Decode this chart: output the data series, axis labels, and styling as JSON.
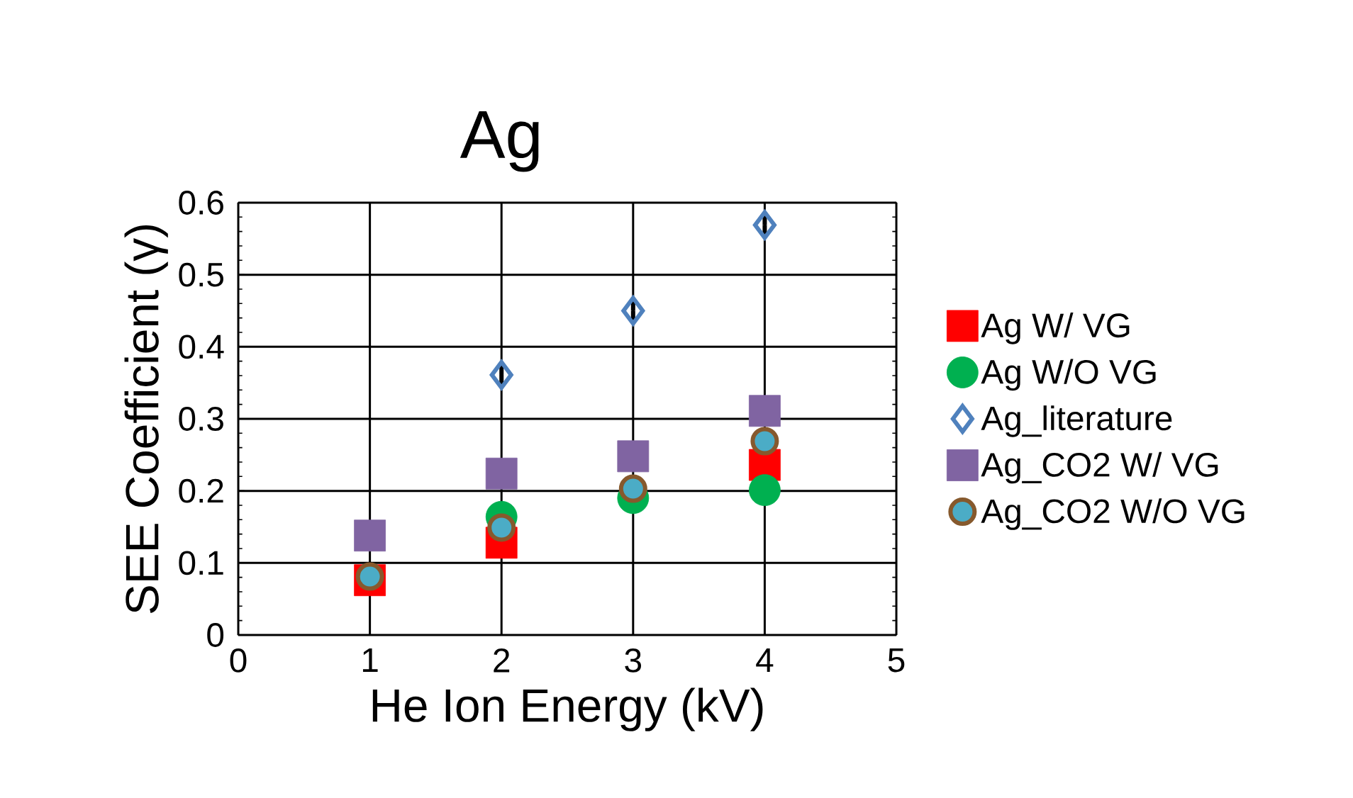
{
  "chart_data": {
    "type": "scatter",
    "title": "Ag",
    "xlabel": "He Ion Energy (kV)",
    "ylabel": "SEE Coefficient (γ)",
    "x": [
      1,
      2,
      3,
      4
    ],
    "series": [
      {
        "name": "Ag W/ VG",
        "color": "#ff0000",
        "marker": "square",
        "values": [
          0.076,
          0.128,
          null,
          0.236
        ]
      },
      {
        "name": "Ag W/O VG",
        "color": "#00b050",
        "marker": "circle",
        "values": [
          null,
          0.164,
          0.19,
          0.201
        ]
      },
      {
        "name": "Ag_literature",
        "color": "#4f81bd",
        "marker": "diamond",
        "values": [
          null,
          0.361,
          0.45,
          0.569
        ],
        "errors": [
          null,
          0.013,
          0.013,
          0.018
        ]
      },
      {
        "name": "Ag_CO2 W/ VG",
        "color": "#8064a2",
        "marker": "square",
        "values": [
          0.138,
          0.224,
          0.248,
          0.311
        ]
      },
      {
        "name": "Ag_CO2 W/O VG",
        "color": "#4bacc6",
        "marker": "circle",
        "values": [
          0.081,
          0.149,
          0.203,
          0.269
        ]
      }
    ],
    "xlim": [
      0,
      5
    ],
    "xticks": [
      0,
      1,
      2,
      3,
      4,
      5
    ],
    "ylim": [
      0,
      0.6
    ],
    "yticks": [
      0,
      0.1,
      0.2,
      0.3,
      0.4,
      0.5,
      0.6
    ],
    "grid": true,
    "legend": "right"
  }
}
